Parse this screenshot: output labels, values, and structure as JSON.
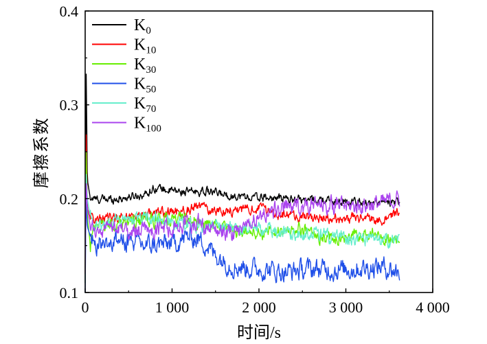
{
  "chart_data": {
    "type": "line",
    "xlabel": "时间/s",
    "ylabel": "摩擦系数",
    "xlim": [
      0,
      4000
    ],
    "ylim": [
      0.1,
      0.4
    ],
    "xticks": [
      0,
      1000,
      2000,
      3000,
      4000
    ],
    "xtick_labels": [
      "0",
      "1 000",
      "2 000",
      "3 000",
      "4 000"
    ],
    "yticks": [
      0.1,
      0.2,
      0.3,
      0.4
    ],
    "ytick_labels": [
      "0.1",
      "0.2",
      "0.3",
      "0.4"
    ],
    "grid": false,
    "legend_position": "top-left",
    "series": [
      {
        "name": "K",
        "sub": "0",
        "color": "#000000",
        "noise": 0.005,
        "x": [
          0,
          10,
          25,
          60,
          150,
          400,
          700,
          800,
          1000,
          1200,
          1400,
          1500,
          1700,
          2000,
          2300,
          2600,
          2900,
          3200,
          3500,
          3620
        ],
        "y": [
          0.11,
          0.35,
          0.22,
          0.2,
          0.199,
          0.2,
          0.205,
          0.212,
          0.208,
          0.207,
          0.208,
          0.206,
          0.203,
          0.201,
          0.2,
          0.199,
          0.197,
          0.196,
          0.195,
          0.196
        ]
      },
      {
        "name": "K",
        "sub": "10",
        "color": "#ff0000",
        "noise": 0.006,
        "x": [
          0,
          10,
          25,
          60,
          150,
          400,
          700,
          1000,
          1200,
          1300,
          1500,
          1800,
          2000,
          2300,
          2600,
          2900,
          3200,
          3400,
          3620
        ],
        "y": [
          0.12,
          0.28,
          0.19,
          0.18,
          0.178,
          0.18,
          0.184,
          0.186,
          0.188,
          0.192,
          0.187,
          0.188,
          0.19,
          0.182,
          0.18,
          0.178,
          0.18,
          0.177,
          0.185
        ]
      },
      {
        "name": "K",
        "sub": "30",
        "color": "#66ee00",
        "noise": 0.008,
        "x": [
          0,
          10,
          25,
          60,
          120,
          300,
          600,
          900,
          1200,
          1500,
          1800,
          2100,
          2400,
          2700,
          3000,
          3300,
          3620
        ],
        "y": [
          0.12,
          0.26,
          0.18,
          0.15,
          0.17,
          0.172,
          0.176,
          0.178,
          0.176,
          0.172,
          0.165,
          0.163,
          0.168,
          0.16,
          0.158,
          0.162,
          0.156
        ]
      },
      {
        "name": "K",
        "sub": "50",
        "color": "#1f4fe8",
        "noise": 0.012,
        "x": [
          0,
          10,
          25,
          60,
          150,
          400,
          700,
          1000,
          1200,
          1350,
          1500,
          1700,
          2000,
          2300,
          2600,
          2900,
          3200,
          3400,
          3620
        ],
        "y": [
          0.1,
          0.2,
          0.17,
          0.16,
          0.152,
          0.156,
          0.15,
          0.152,
          0.16,
          0.155,
          0.14,
          0.128,
          0.125,
          0.122,
          0.125,
          0.124,
          0.126,
          0.128,
          0.122
        ]
      },
      {
        "name": "K",
        "sub": "70",
        "color": "#66eecc",
        "noise": 0.008,
        "x": [
          0,
          10,
          25,
          60,
          100,
          300,
          600,
          800,
          1000,
          1300,
          1600,
          1900,
          2200,
          2500,
          2800,
          3100,
          3400,
          3620
        ],
        "y": [
          0.11,
          0.23,
          0.2,
          0.18,
          0.17,
          0.176,
          0.178,
          0.18,
          0.175,
          0.172,
          0.17,
          0.168,
          0.165,
          0.163,
          0.16,
          0.158,
          0.154,
          0.157
        ]
      },
      {
        "name": "K",
        "sub": "100",
        "color": "#aa44ee",
        "noise": 0.01,
        "x": [
          0,
          10,
          25,
          60,
          150,
          400,
          700,
          1000,
          1300,
          1500,
          1700,
          1900,
          2100,
          2300,
          2500,
          2800,
          3100,
          3400,
          3620
        ],
        "y": [
          0.12,
          0.22,
          0.19,
          0.17,
          0.165,
          0.168,
          0.165,
          0.17,
          0.175,
          0.168,
          0.162,
          0.175,
          0.185,
          0.19,
          0.192,
          0.193,
          0.192,
          0.195,
          0.2
        ]
      }
    ]
  }
}
